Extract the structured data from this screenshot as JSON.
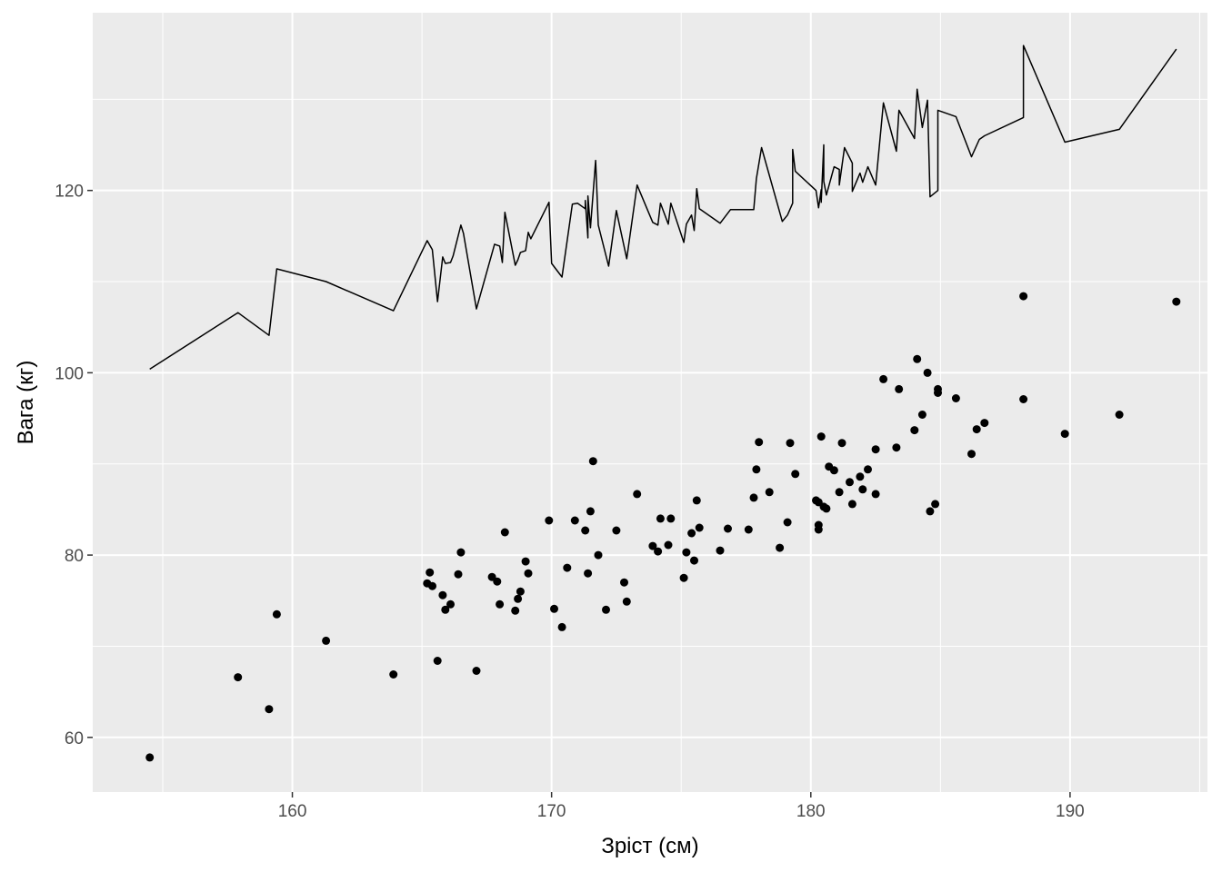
{
  "chart_data": {
    "type": "scatter",
    "title": "",
    "xlabel": "Зріст (см)",
    "ylabel": "Вага (кг)",
    "xlim": [
      152.3,
      195.3
    ],
    "ylim": [
      54,
      139.5
    ],
    "x_ticks": [
      160,
      170,
      180,
      190
    ],
    "y_ticks": [
      60,
      80,
      100,
      120
    ],
    "grid": true,
    "panel_background": "#ebebeb",
    "grid_color": "#ffffff",
    "mark_color": "#000000",
    "series": [
      {
        "type": "scatter",
        "points": [
          [
            154.5,
            57.8
          ],
          [
            157.9,
            66.6
          ],
          [
            159.1,
            63.1
          ],
          [
            159.4,
            73.5
          ],
          [
            161.3,
            70.6
          ],
          [
            163.9,
            66.9
          ],
          [
            165.2,
            76.9
          ],
          [
            165.3,
            78.1
          ],
          [
            165.4,
            76.6
          ],
          [
            165.6,
            68.4
          ],
          [
            165.8,
            75.6
          ],
          [
            165.9,
            74.0
          ],
          [
            166.1,
            74.6
          ],
          [
            166.4,
            77.9
          ],
          [
            166.5,
            80.3
          ],
          [
            167.1,
            67.3
          ],
          [
            167.7,
            77.6
          ],
          [
            167.9,
            77.1
          ],
          [
            168.0,
            74.6
          ],
          [
            168.2,
            82.5
          ],
          [
            168.6,
            73.9
          ],
          [
            168.7,
            75.2
          ],
          [
            168.8,
            76.0
          ],
          [
            169.0,
            79.3
          ],
          [
            169.1,
            78.0
          ],
          [
            169.9,
            83.8
          ],
          [
            170.1,
            74.1
          ],
          [
            170.4,
            72.1
          ],
          [
            170.6,
            78.6
          ],
          [
            170.9,
            83.8
          ],
          [
            171.3,
            82.7
          ],
          [
            171.4,
            78.0
          ],
          [
            171.5,
            84.8
          ],
          [
            171.6,
            90.3
          ],
          [
            171.8,
            80.0
          ],
          [
            172.1,
            74.0
          ],
          [
            172.5,
            82.7
          ],
          [
            172.8,
            77.0
          ],
          [
            172.9,
            74.9
          ],
          [
            173.3,
            86.7
          ],
          [
            173.9,
            81.0
          ],
          [
            174.1,
            80.4
          ],
          [
            174.2,
            84.0
          ],
          [
            174.5,
            81.1
          ],
          [
            174.6,
            84.0
          ],
          [
            175.1,
            77.5
          ],
          [
            175.2,
            80.3
          ],
          [
            175.4,
            82.4
          ],
          [
            175.5,
            79.4
          ],
          [
            175.6,
            86.0
          ],
          [
            175.7,
            83.0
          ],
          [
            176.5,
            80.5
          ],
          [
            176.8,
            82.9
          ],
          [
            177.6,
            82.8
          ],
          [
            177.8,
            86.3
          ],
          [
            177.9,
            89.4
          ],
          [
            178.0,
            92.4
          ],
          [
            178.4,
            86.9
          ],
          [
            178.8,
            80.8
          ],
          [
            179.1,
            83.6
          ],
          [
            179.2,
            92.3
          ],
          [
            179.4,
            88.9
          ],
          [
            180.2,
            86.0
          ],
          [
            180.3,
            85.8
          ],
          [
            180.3,
            83.3
          ],
          [
            180.3,
            82.8
          ],
          [
            180.4,
            93.0
          ],
          [
            180.5,
            85.3
          ],
          [
            180.6,
            85.1
          ],
          [
            180.7,
            89.7
          ],
          [
            180.9,
            89.3
          ],
          [
            181.1,
            86.9
          ],
          [
            181.2,
            92.3
          ],
          [
            181.5,
            88.0
          ],
          [
            181.6,
            85.6
          ],
          [
            181.9,
            88.6
          ],
          [
            182.0,
            87.2
          ],
          [
            182.2,
            89.4
          ],
          [
            182.5,
            91.6
          ],
          [
            182.5,
            86.7
          ],
          [
            182.8,
            99.3
          ],
          [
            183.3,
            91.8
          ],
          [
            183.4,
            98.2
          ],
          [
            184.0,
            93.7
          ],
          [
            184.1,
            101.5
          ],
          [
            184.3,
            95.4
          ],
          [
            184.5,
            100.0
          ],
          [
            184.6,
            84.8
          ],
          [
            184.8,
            85.6
          ],
          [
            184.9,
            98.2
          ],
          [
            184.9,
            97.8
          ],
          [
            185.6,
            97.2
          ],
          [
            186.2,
            91.1
          ],
          [
            186.4,
            93.8
          ],
          [
            186.7,
            94.5
          ],
          [
            188.2,
            108.4
          ],
          [
            188.2,
            97.1
          ],
          [
            189.8,
            93.3
          ],
          [
            191.9,
            95.4
          ],
          [
            194.1,
            107.8
          ]
        ]
      },
      {
        "type": "line",
        "points": [
          [
            154.5,
            100.4
          ],
          [
            157.9,
            106.6
          ],
          [
            159.1,
            104.1
          ],
          [
            159.4,
            111.4
          ],
          [
            161.3,
            110.0
          ],
          [
            163.9,
            106.8
          ],
          [
            165.2,
            114.5
          ],
          [
            165.4,
            113.5
          ],
          [
            165.6,
            107.8
          ],
          [
            165.8,
            112.7
          ],
          [
            165.9,
            112.0
          ],
          [
            166.1,
            112.1
          ],
          [
            166.2,
            112.8
          ],
          [
            166.5,
            116.2
          ],
          [
            166.6,
            115.3
          ],
          [
            167.1,
            107.0
          ],
          [
            167.8,
            114.1
          ],
          [
            168.0,
            113.9
          ],
          [
            168.1,
            112.1
          ],
          [
            168.2,
            117.6
          ],
          [
            168.6,
            111.8
          ],
          [
            168.7,
            112.4
          ],
          [
            168.8,
            113.2
          ],
          [
            169.0,
            113.4
          ],
          [
            169.1,
            115.4
          ],
          [
            169.2,
            114.7
          ],
          [
            169.9,
            118.7
          ],
          [
            170.0,
            112.0
          ],
          [
            170.4,
            110.5
          ],
          [
            170.8,
            118.5
          ],
          [
            171.0,
            118.6
          ],
          [
            171.3,
            118.0
          ],
          [
            171.3,
            118.9
          ],
          [
            171.4,
            114.8
          ],
          [
            171.4,
            119.4
          ],
          [
            171.5,
            115.9
          ],
          [
            171.7,
            123.3
          ],
          [
            171.8,
            116.2
          ],
          [
            172.2,
            111.7
          ],
          [
            172.5,
            117.8
          ],
          [
            172.9,
            112.5
          ],
          [
            173.3,
            120.6
          ],
          [
            173.9,
            116.5
          ],
          [
            174.1,
            116.2
          ],
          [
            174.2,
            118.6
          ],
          [
            174.5,
            116.3
          ],
          [
            174.6,
            118.6
          ],
          [
            175.1,
            114.3
          ],
          [
            175.2,
            116.3
          ],
          [
            175.4,
            117.3
          ],
          [
            175.5,
            115.6
          ],
          [
            175.6,
            120.2
          ],
          [
            175.7,
            118.0
          ],
          [
            176.5,
            116.4
          ],
          [
            176.9,
            117.9
          ],
          [
            177.8,
            117.9
          ],
          [
            177.9,
            121.3
          ],
          [
            178.1,
            124.7
          ],
          [
            178.9,
            116.6
          ],
          [
            179.1,
            117.3
          ],
          [
            179.3,
            118.6
          ],
          [
            179.3,
            124.5
          ],
          [
            179.4,
            122.1
          ],
          [
            180.2,
            120.0
          ],
          [
            180.3,
            118.1
          ],
          [
            180.4,
            120.1
          ],
          [
            180.4,
            118.7
          ],
          [
            180.5,
            125.0
          ],
          [
            180.5,
            121.0
          ],
          [
            180.6,
            119.5
          ],
          [
            180.9,
            122.6
          ],
          [
            181.1,
            122.3
          ],
          [
            181.1,
            120.6
          ],
          [
            181.3,
            124.7
          ],
          [
            181.6,
            123.0
          ],
          [
            181.6,
            119.9
          ],
          [
            181.9,
            121.9
          ],
          [
            182.0,
            120.9
          ],
          [
            182.2,
            122.6
          ],
          [
            182.5,
            120.6
          ],
          [
            182.8,
            129.6
          ],
          [
            183.3,
            124.3
          ],
          [
            183.4,
            128.8
          ],
          [
            184.0,
            125.7
          ],
          [
            184.1,
            131.1
          ],
          [
            184.3,
            126.9
          ],
          [
            184.5,
            129.9
          ],
          [
            184.6,
            119.3
          ],
          [
            184.9,
            120.0
          ],
          [
            184.9,
            128.8
          ],
          [
            185.6,
            128.1
          ],
          [
            186.2,
            123.7
          ],
          [
            186.5,
            125.6
          ],
          [
            186.7,
            126.0
          ],
          [
            188.2,
            128.0
          ],
          [
            188.2,
            135.9
          ],
          [
            189.8,
            125.3
          ],
          [
            191.9,
            126.7
          ],
          [
            194.1,
            135.5
          ]
        ]
      }
    ]
  }
}
